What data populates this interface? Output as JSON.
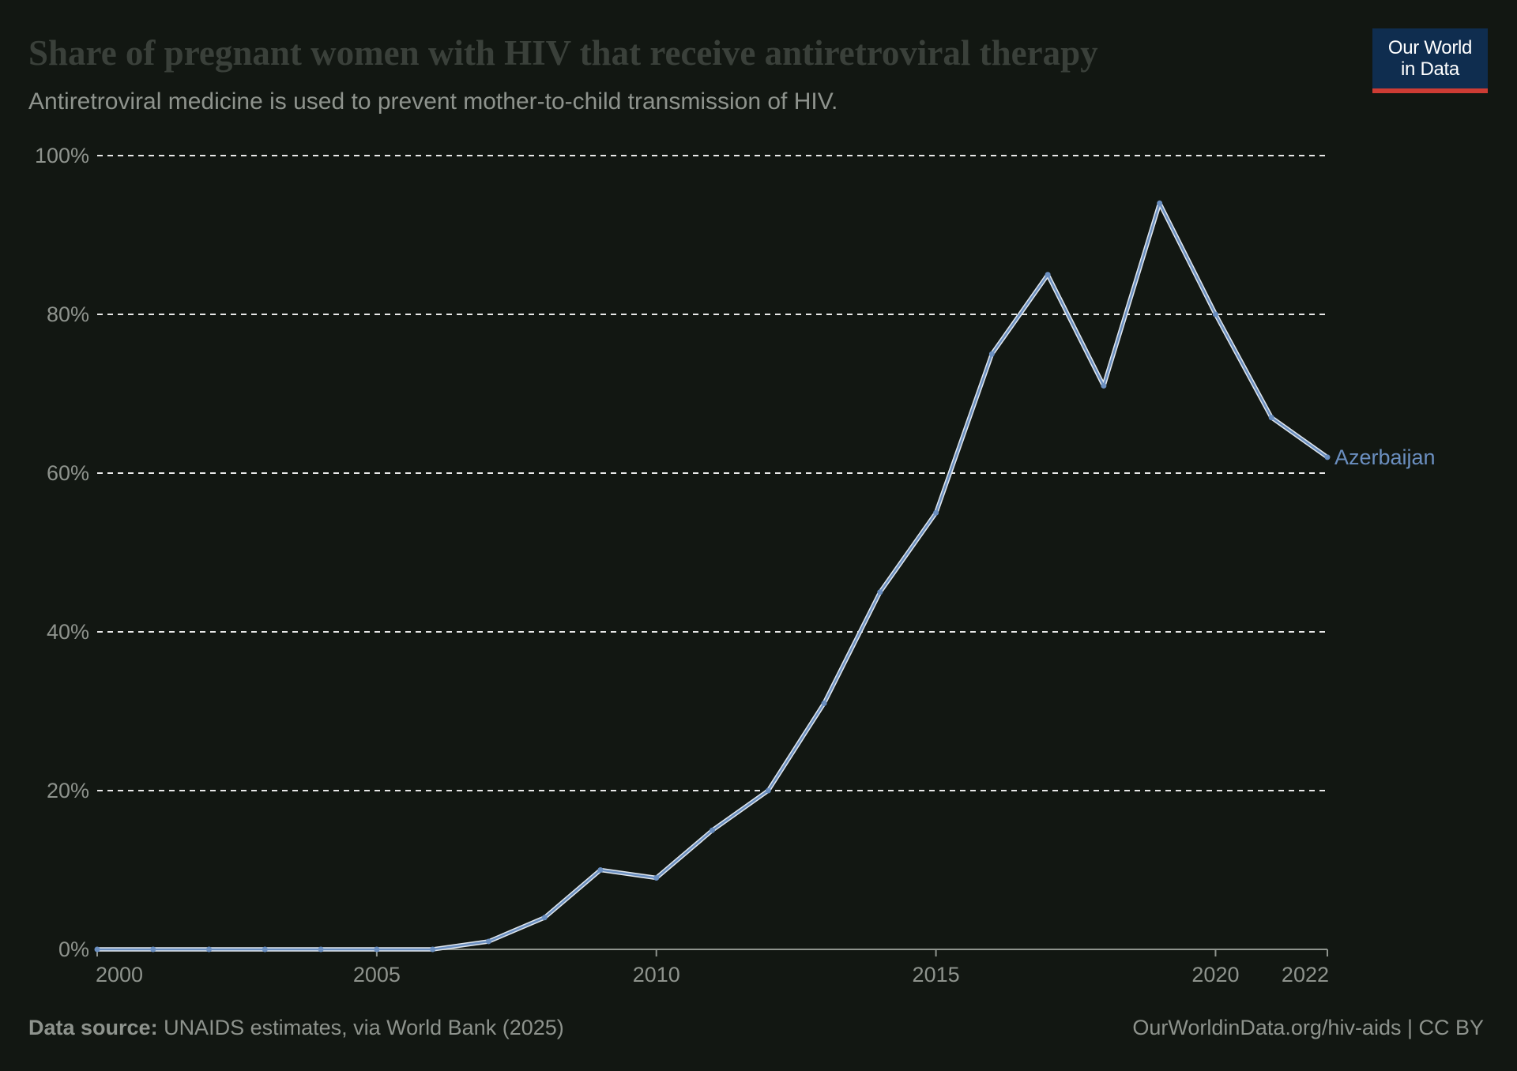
{
  "header": {
    "title": "Share of pregnant women with HIV that receive antiretroviral therapy",
    "subtitle": "Antiretroviral medicine is used to prevent mother-to-child transmission of HIV."
  },
  "logo": {
    "line1": "Our World",
    "line2": "in Data",
    "bg_color": "#0f2d4f",
    "accent_color": "#cd3c34"
  },
  "footer": {
    "source_label": "Data source:",
    "source_text": " UNAIDS estimates, via World Bank (2025)",
    "credit": "OurWorldinData.org/hiv-aids | CC BY"
  },
  "chart_data": {
    "type": "line",
    "title": "Share of pregnant women with HIV that receive antiretroviral therapy",
    "subtitle": "Antiretroviral medicine is used to prevent mother-to-child transmission of HIV.",
    "xlabel": "",
    "ylabel": "",
    "xlim": [
      2000,
      2022
    ],
    "ylim": [
      0,
      100
    ],
    "x_ticks": [
      2000,
      2005,
      2010,
      2015,
      2020,
      2022
    ],
    "y_ticks": [
      0,
      20,
      40,
      60,
      80,
      100
    ],
    "y_tick_labels": [
      "0%",
      "20%",
      "40%",
      "60%",
      "80%",
      "100%"
    ],
    "grid": "horizontal-dashed",
    "legend": "inline-right",
    "series": [
      {
        "name": "Azerbaijan",
        "color": "#6b8fc0",
        "x": [
          2000,
          2001,
          2002,
          2003,
          2004,
          2005,
          2006,
          2007,
          2008,
          2009,
          2010,
          2011,
          2012,
          2013,
          2014,
          2015,
          2016,
          2017,
          2018,
          2019,
          2020,
          2021,
          2022
        ],
        "y": [
          0,
          0,
          0,
          0,
          0,
          0,
          0,
          1,
          4,
          10,
          9,
          15,
          20,
          31,
          45,
          55,
          75,
          85,
          71,
          94,
          80,
          67,
          62
        ]
      }
    ]
  }
}
